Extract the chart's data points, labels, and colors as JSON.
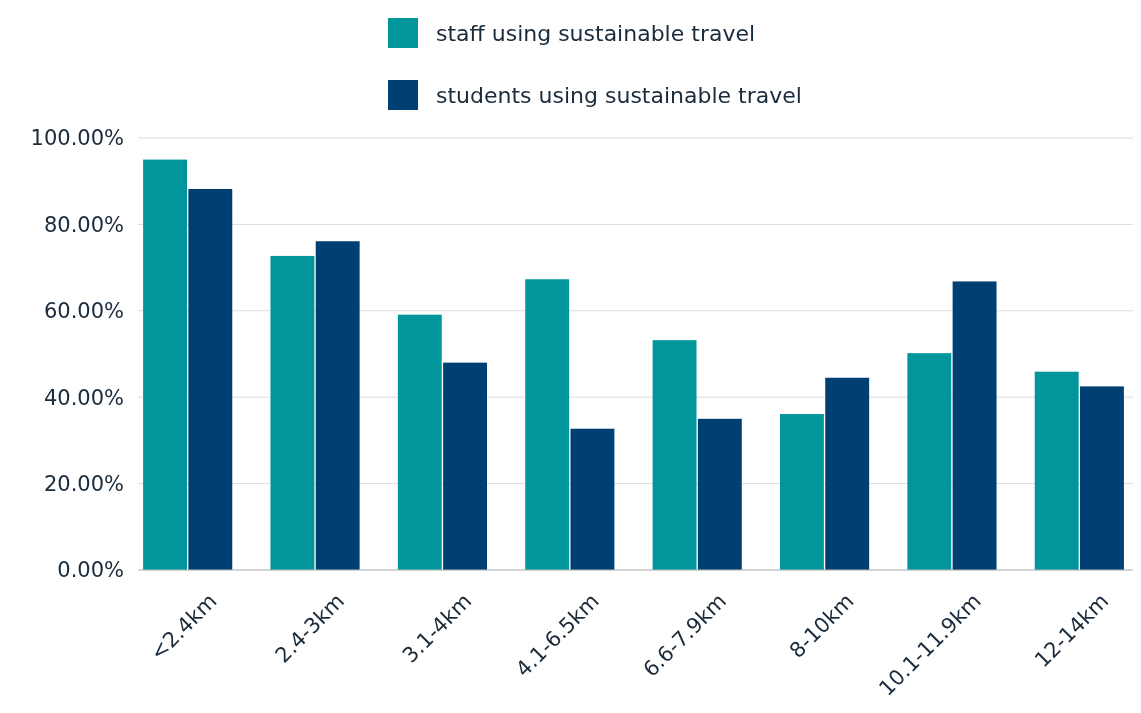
{
  "chart_data": {
    "type": "bar",
    "categories": [
      "<2.4km",
      "2.4-3km",
      "3.1-4km",
      "4.1-6.5km",
      "6.6-7.9km",
      "8-10km",
      "10.1-11.9km",
      "12-14km"
    ],
    "series": [
      {
        "name": "staff using sustainable travel",
        "color": "#00969b",
        "values": [
          95.0,
          72.7,
          59.1,
          67.3,
          53.2,
          36.1,
          50.2,
          45.9
        ]
      },
      {
        "name": "students using sustainable travel",
        "color": "#003f72",
        "values": [
          88.2,
          76.1,
          48.0,
          32.7,
          35.0,
          44.5,
          66.8,
          42.5
        ]
      }
    ],
    "ylim": [
      0,
      100
    ],
    "yticks": [
      {
        "value": 0,
        "label": "0.00%"
      },
      {
        "value": 20,
        "label": "20.00%"
      },
      {
        "value": 40,
        "label": "40.00%"
      },
      {
        "value": 60,
        "label": "60.00%"
      },
      {
        "value": 80,
        "label": "80.00%"
      },
      {
        "value": 100,
        "label": "100.00%"
      }
    ],
    "grid": "y",
    "legend": "top"
  }
}
